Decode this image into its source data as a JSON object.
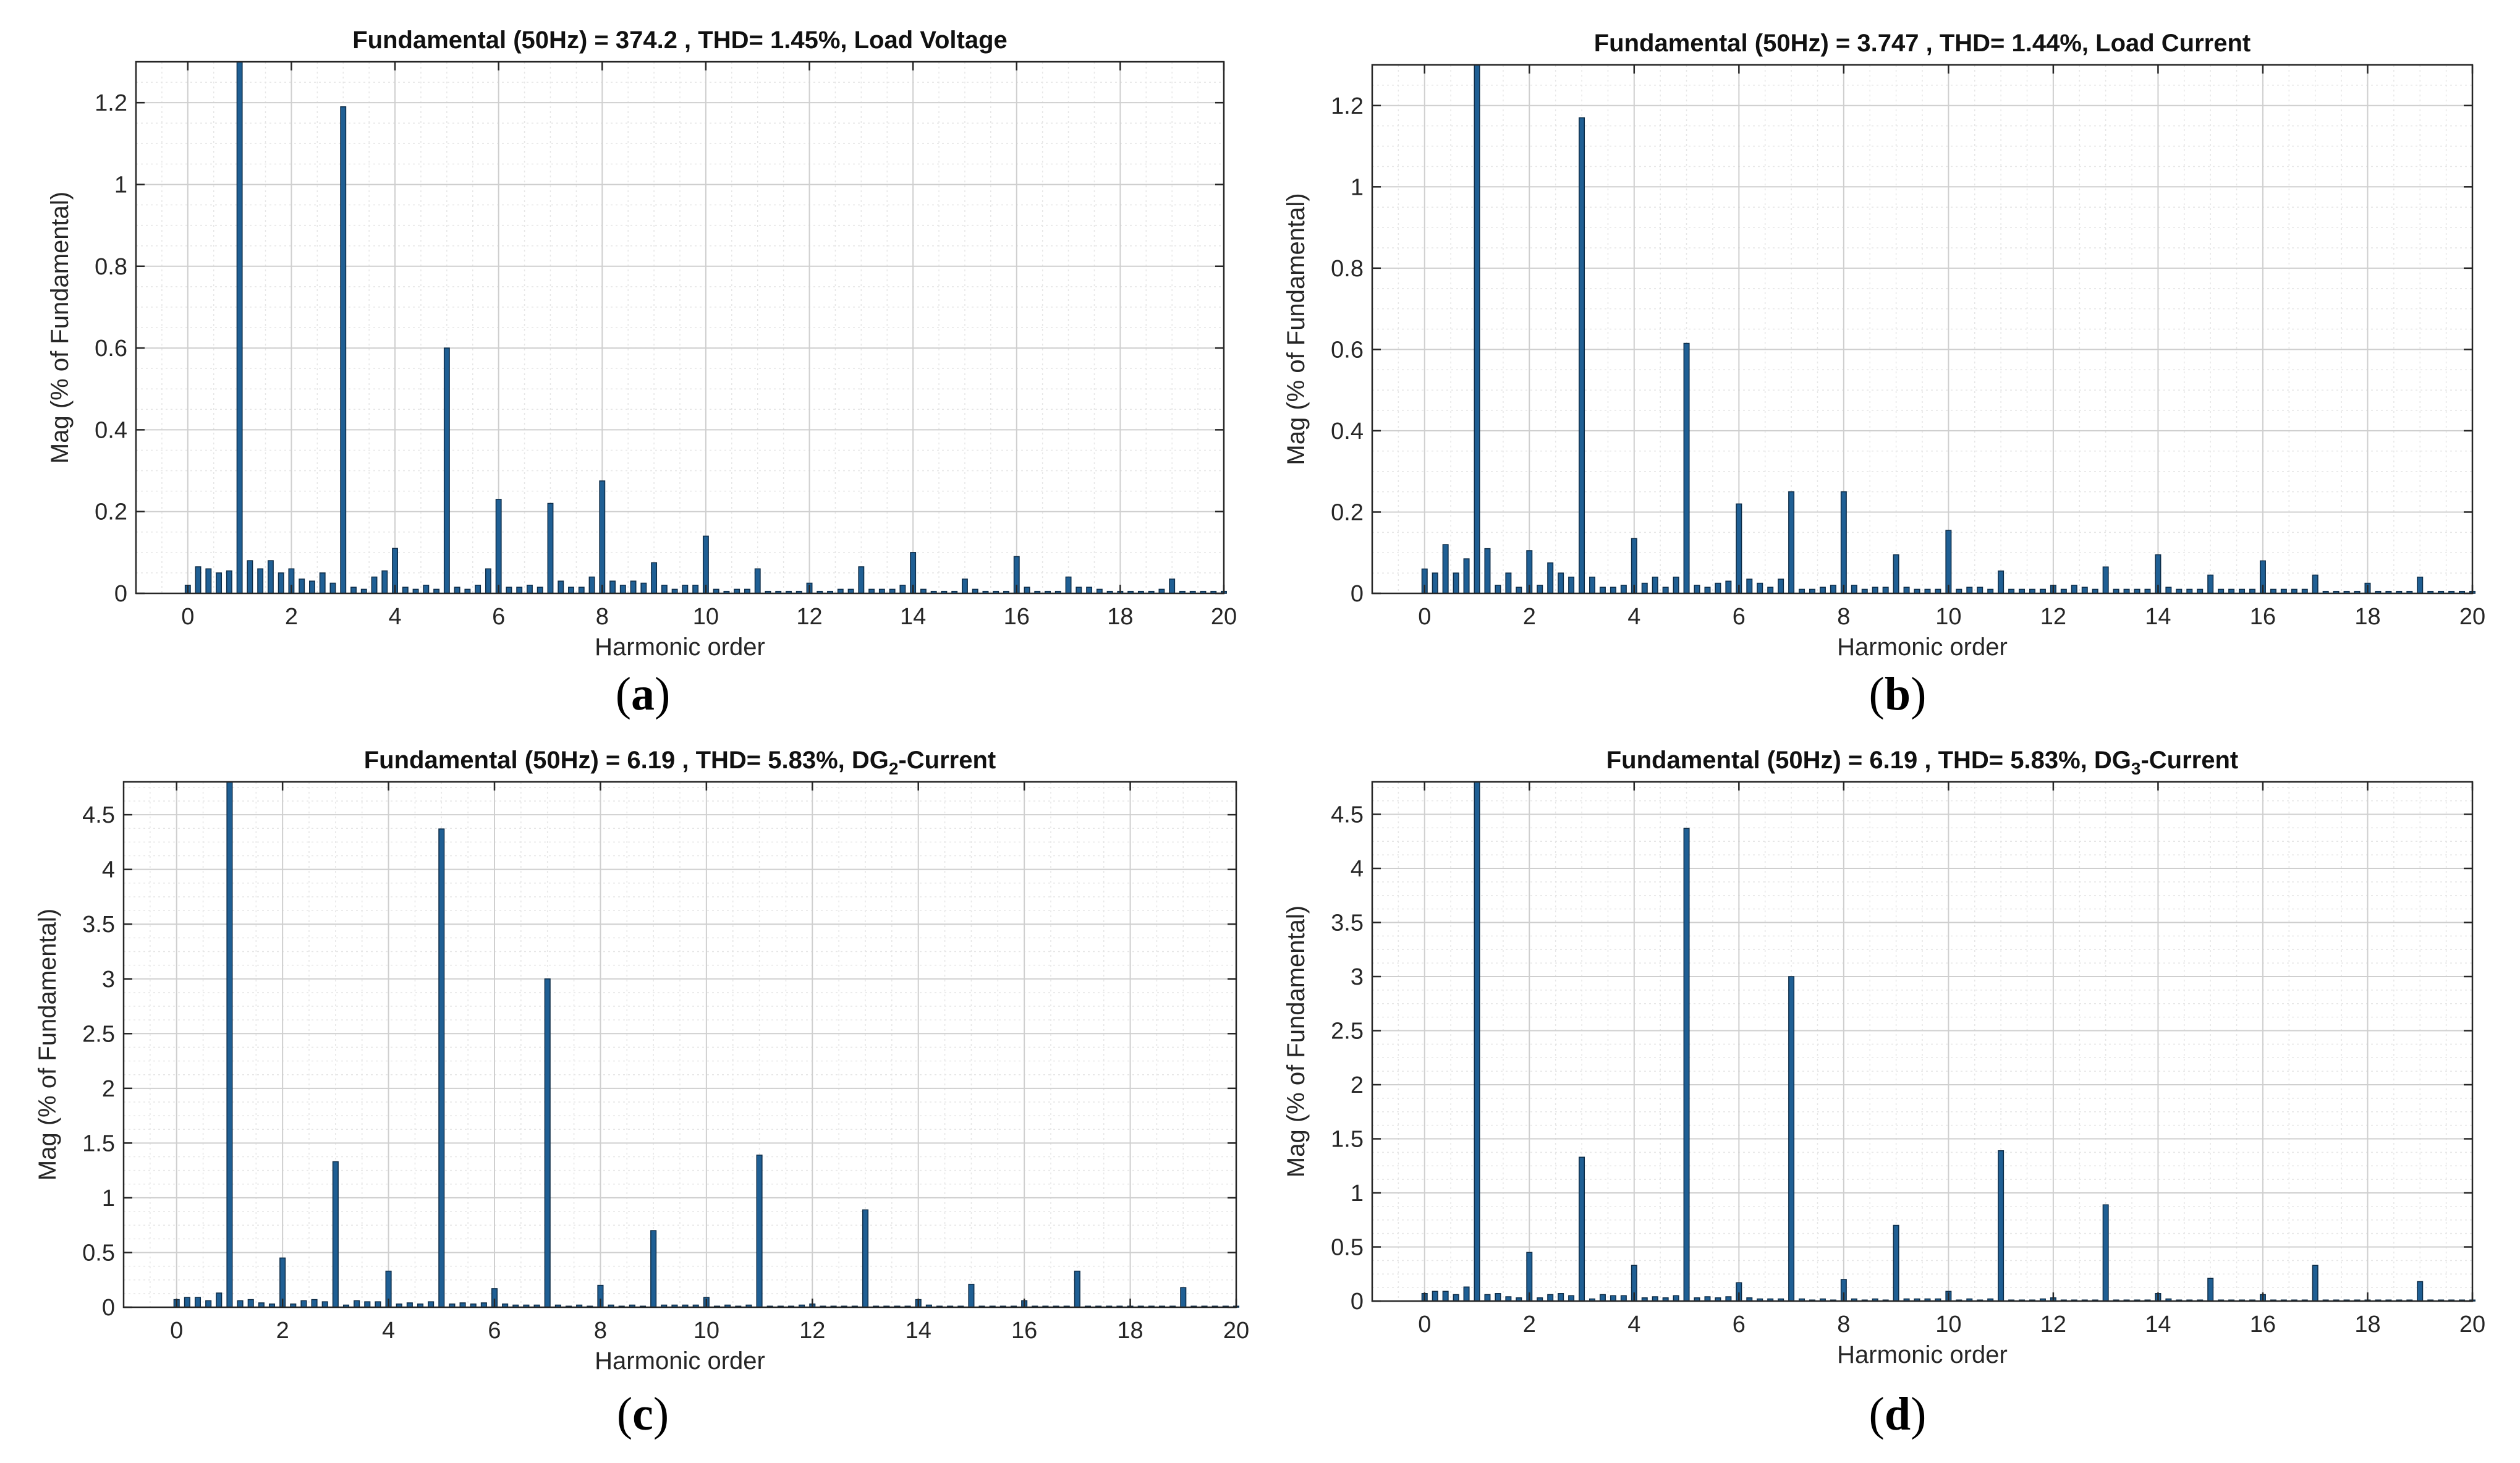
{
  "figure": {
    "panel_labels": [
      "(a)",
      "(b)",
      "(c)",
      "(d)"
    ]
  },
  "chart_data": [
    {
      "type": "bar",
      "title_parts": [
        "Fundamental (50Hz) = 374.2 , THD= 1.45%, Load Voltage"
      ],
      "xlabel": "Harmonic order",
      "ylabel": "Mag (% of Fundamental)",
      "xlim": [
        -1,
        20
      ],
      "ylim": [
        0,
        1.3
      ],
      "xticks": [
        0,
        2,
        4,
        6,
        8,
        10,
        12,
        14,
        16,
        18,
        20
      ],
      "yticks": [
        0,
        0.2,
        0.4,
        0.6,
        0.8,
        1,
        1.2
      ],
      "ytick_labels": [
        "0",
        "0.2",
        "0.4",
        "0.6",
        "0.8",
        "1",
        "1.2"
      ],
      "grid": true,
      "bar_color": "#1f5f94",
      "x_step": 0.2,
      "values": [
        0.02,
        0.065,
        0.06,
        0.05,
        0.055,
        1.3,
        0.08,
        0.06,
        0.08,
        0.05,
        0.06,
        0.035,
        0.03,
        0.05,
        0.025,
        1.19,
        0.015,
        0.01,
        0.04,
        0.055,
        0.11,
        0.015,
        0.01,
        0.02,
        0.01,
        0.6,
        0.015,
        0.01,
        0.02,
        0.06,
        0.23,
        0.015,
        0.015,
        0.02,
        0.015,
        0.22,
        0.03,
        0.015,
        0.015,
        0.04,
        0.275,
        0.03,
        0.02,
        0.03,
        0.025,
        0.075,
        0.02,
        0.01,
        0.02,
        0.02,
        0.14,
        0.01,
        0.005,
        0.01,
        0.01,
        0.06,
        0.005,
        0.005,
        0.005,
        0.005,
        0.025,
        0.005,
        0.005,
        0.01,
        0.01,
        0.065,
        0.01,
        0.01,
        0.01,
        0.02,
        0.1,
        0.01,
        0.005,
        0.005,
        0.005,
        0.035,
        0.01,
        0.005,
        0.005,
        0.005,
        0.09,
        0.015,
        0.005,
        0.005,
        0.005,
        0.04,
        0.015,
        0.015,
        0.01,
        0.005,
        0.005,
        0.005,
        0.005,
        0.005,
        0.01,
        0.035,
        0.005,
        0.005,
        0.005,
        0.005,
        0.005
      ]
    },
    {
      "type": "bar",
      "title_parts": [
        "Fundamental (50Hz) = 3.747 , THD= 1.44%, Load Current"
      ],
      "xlabel": "Harmonic order",
      "ylabel": "Mag (% of Fundamental)",
      "xlim": [
        -1,
        20
      ],
      "ylim": [
        0,
        1.3
      ],
      "xticks": [
        0,
        2,
        4,
        6,
        8,
        10,
        12,
        14,
        16,
        18,
        20
      ],
      "yticks": [
        0,
        0.2,
        0.4,
        0.6,
        0.8,
        1,
        1.2
      ],
      "ytick_labels": [
        "0",
        "0.2",
        "0.4",
        "0.6",
        "0.8",
        "1",
        "1.2"
      ],
      "grid": true,
      "bar_color": "#1f5f94",
      "x_step": 0.2,
      "values": [
        0.06,
        0.05,
        0.12,
        0.05,
        0.085,
        1.3,
        0.11,
        0.02,
        0.05,
        0.015,
        0.105,
        0.02,
        0.075,
        0.05,
        0.04,
        1.17,
        0.04,
        0.015,
        0.015,
        0.02,
        0.135,
        0.025,
        0.04,
        0.015,
        0.04,
        0.615,
        0.02,
        0.015,
        0.025,
        0.03,
        0.22,
        0.035,
        0.025,
        0.015,
        0.035,
        0.25,
        0.01,
        0.01,
        0.015,
        0.02,
        0.25,
        0.02,
        0.01,
        0.015,
        0.015,
        0.095,
        0.015,
        0.01,
        0.01,
        0.01,
        0.155,
        0.01,
        0.015,
        0.015,
        0.01,
        0.055,
        0.01,
        0.01,
        0.01,
        0.01,
        0.02,
        0.01,
        0.02,
        0.015,
        0.01,
        0.065,
        0.01,
        0.01,
        0.01,
        0.01,
        0.095,
        0.015,
        0.01,
        0.01,
        0.01,
        0.045,
        0.01,
        0.01,
        0.01,
        0.01,
        0.08,
        0.01,
        0.01,
        0.01,
        0.01,
        0.045,
        0.005,
        0.005,
        0.005,
        0.005,
        0.025,
        0.005,
        0.005,
        0.005,
        0.005,
        0.04,
        0.005,
        0.005,
        0.005,
        0.005,
        0.005
      ]
    },
    {
      "type": "bar",
      "title_parts": [
        "Fundamental (50Hz) = 6.19 , THD= 5.83%, DG",
        "2",
        "-Current"
      ],
      "xlabel": "Harmonic order",
      "ylabel": "Mag (% of Fundamental)",
      "xlim": [
        -1,
        20
      ],
      "ylim": [
        0,
        4.8
      ],
      "xticks": [
        0,
        2,
        4,
        6,
        8,
        10,
        12,
        14,
        16,
        18,
        20
      ],
      "yticks": [
        0,
        0.5,
        1,
        1.5,
        2,
        2.5,
        3,
        3.5,
        4,
        4.5
      ],
      "ytick_labels": [
        "0",
        "0.5",
        "1",
        "1.5",
        "2",
        "2.5",
        "3",
        "3.5",
        "4",
        "4.5"
      ],
      "grid": true,
      "bar_color": "#1f5f94",
      "x_step": 0.2,
      "values": [
        0.07,
        0.09,
        0.09,
        0.06,
        0.13,
        4.8,
        0.06,
        0.07,
        0.04,
        0.03,
        0.45,
        0.03,
        0.06,
        0.07,
        0.05,
        1.33,
        0.02,
        0.06,
        0.05,
        0.05,
        0.33,
        0.03,
        0.04,
        0.03,
        0.05,
        4.37,
        0.03,
        0.04,
        0.03,
        0.04,
        0.17,
        0.03,
        0.02,
        0.02,
        0.02,
        3.0,
        0.02,
        0.01,
        0.02,
        0.01,
        0.2,
        0.02,
        0.01,
        0.02,
        0.01,
        0.7,
        0.02,
        0.02,
        0.02,
        0.02,
        0.09,
        0.01,
        0.02,
        0.01,
        0.02,
        1.39,
        0.01,
        0.01,
        0.01,
        0.02,
        0.03,
        0.01,
        0.01,
        0.01,
        0.01,
        0.89,
        0.01,
        0.01,
        0.01,
        0.01,
        0.07,
        0.02,
        0.01,
        0.01,
        0.01,
        0.21,
        0.01,
        0.01,
        0.01,
        0.01,
        0.06,
        0.01,
        0.01,
        0.01,
        0.01,
        0.33,
        0.01,
        0.01,
        0.01,
        0.01,
        0.01,
        0.01,
        0.01,
        0.01,
        0.01,
        0.18,
        0.01,
        0.01,
        0.01,
        0.01,
        0.01
      ]
    },
    {
      "type": "bar",
      "title_parts": [
        "Fundamental (50Hz) = 6.19 , THD= 5.83%, DG",
        "3",
        "-Current"
      ],
      "xlabel": "Harmonic order",
      "ylabel": "Mag (% of Fundamental)",
      "xlim": [
        -1,
        20
      ],
      "ylim": [
        0,
        4.8
      ],
      "xticks": [
        0,
        2,
        4,
        6,
        8,
        10,
        12,
        14,
        16,
        18,
        20
      ],
      "yticks": [
        0,
        0.5,
        1,
        1.5,
        2,
        2.5,
        3,
        3.5,
        4,
        4.5
      ],
      "ytick_labels": [
        "0",
        "0.5",
        "1",
        "1.5",
        "2",
        "2.5",
        "3",
        "3.5",
        "4",
        "4.5"
      ],
      "grid": true,
      "bar_color": "#1f5f94",
      "x_step": 0.2,
      "values": [
        0.07,
        0.09,
        0.09,
        0.06,
        0.13,
        4.8,
        0.06,
        0.07,
        0.04,
        0.03,
        0.45,
        0.03,
        0.06,
        0.07,
        0.05,
        1.33,
        0.02,
        0.06,
        0.05,
        0.05,
        0.33,
        0.03,
        0.04,
        0.03,
        0.05,
        4.37,
        0.03,
        0.04,
        0.03,
        0.04,
        0.17,
        0.03,
        0.02,
        0.02,
        0.02,
        3.0,
        0.02,
        0.01,
        0.02,
        0.01,
        0.2,
        0.02,
        0.01,
        0.02,
        0.01,
        0.7,
        0.02,
        0.02,
        0.02,
        0.02,
        0.09,
        0.01,
        0.02,
        0.01,
        0.02,
        1.39,
        0.01,
        0.01,
        0.01,
        0.02,
        0.03,
        0.01,
        0.01,
        0.01,
        0.01,
        0.89,
        0.01,
        0.01,
        0.01,
        0.01,
        0.07,
        0.02,
        0.01,
        0.01,
        0.01,
        0.21,
        0.01,
        0.01,
        0.01,
        0.01,
        0.06,
        0.01,
        0.01,
        0.01,
        0.01,
        0.33,
        0.01,
        0.01,
        0.01,
        0.01,
        0.01,
        0.01,
        0.01,
        0.01,
        0.01,
        0.18,
        0.01,
        0.01,
        0.01,
        0.01,
        0.01
      ]
    }
  ]
}
